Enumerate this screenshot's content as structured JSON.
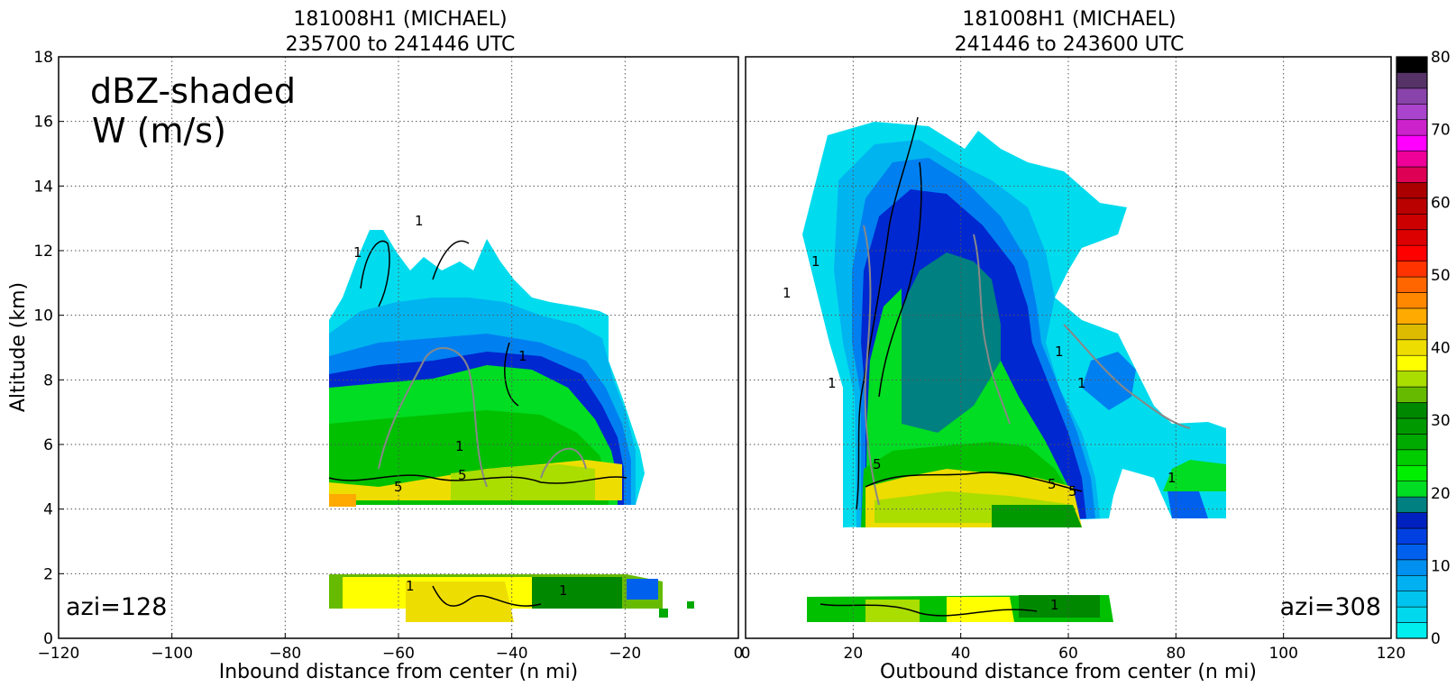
{
  "chart_data": [
    {
      "type": "heatmap",
      "title": "181008H1 (MICHAEL)",
      "subtitle": "235700 to 241446 UTC",
      "xlabel": "Inbound distance from center (n mi)",
      "ylabel": "Altitude (km)",
      "xlim": [
        -120,
        0
      ],
      "ylim": [
        0,
        18
      ],
      "xticks": [
        "−120",
        "−100",
        "−80",
        "−60",
        "−40",
        "−20",
        "0"
      ],
      "yticks": [
        "0",
        "2",
        "4",
        "6",
        "8",
        "10",
        "12",
        "14",
        "16",
        "18"
      ],
      "grid": true,
      "annotation_main": "dBZ-shaded",
      "annotation_sub": "W (m/s)",
      "azimuth_label": "azi=128",
      "contour_label": "1",
      "contour_label_2": "5"
    },
    {
      "type": "heatmap",
      "title": "181008H1 (MICHAEL)",
      "subtitle": "241446 to 243600 UTC",
      "xlabel": "Outbound distance from center (n mi)",
      "xlim": [
        0,
        120
      ],
      "ylim": [
        0,
        18
      ],
      "xticks": [
        "0",
        "20",
        "40",
        "60",
        "80",
        "100",
        "120"
      ],
      "grid": true,
      "azimuth_label": "azi=308"
    }
  ],
  "colorbar": {
    "range": [
      0,
      80
    ],
    "ticks": [
      "0",
      "10",
      "20",
      "30",
      "40",
      "50",
      "60",
      "70",
      "80"
    ],
    "colors": [
      "#00eeee",
      "#00d8ee",
      "#00c4ee",
      "#00b0f0",
      "#0090f0",
      "#0060ee",
      "#0040e0",
      "#0020c0",
      "#008080",
      "#00dd22",
      "#00ee00",
      "#00cc00",
      "#00aa00",
      "#009900",
      "#008800",
      "#66bb00",
      "#aadd00",
      "#ffff00",
      "#eedd00",
      "#ddbb00",
      "#ffaa00",
      "#ff8800",
      "#ff6600",
      "#ff3300",
      "#ff0000",
      "#dd0000",
      "#cc0000",
      "#bb0000",
      "#aa0000",
      "#dd0055",
      "#ee0099",
      "#ff00ff",
      "#cc22cc",
      "#aa44cc",
      "#8844aa",
      "#553366",
      "#000000"
    ]
  }
}
